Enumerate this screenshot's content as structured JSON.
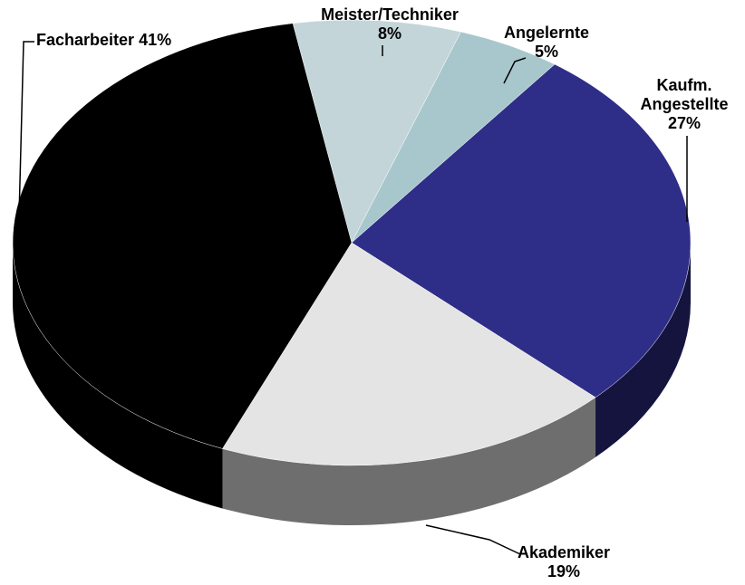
{
  "chart_data": {
    "type": "pie3d",
    "categories": [
      "Meister/Techniker",
      "Angelernte",
      "Kaufm. Angestellte",
      "Akademiker",
      "Facharbeiter"
    ],
    "values": [
      8,
      5,
      27,
      19,
      41
    ],
    "value_labels": [
      "8%",
      "5%",
      "27%",
      "19%",
      "41%"
    ],
    "colors": [
      "#c3d5d9",
      "#a7c7cc",
      "#2e2e88",
      "#e4e4e4",
      "#000000"
    ],
    "side_colors": [
      "#8fa5a9",
      "#7a9ba0",
      "#14143f",
      "#6e6e6e",
      "#000000"
    ]
  }
}
